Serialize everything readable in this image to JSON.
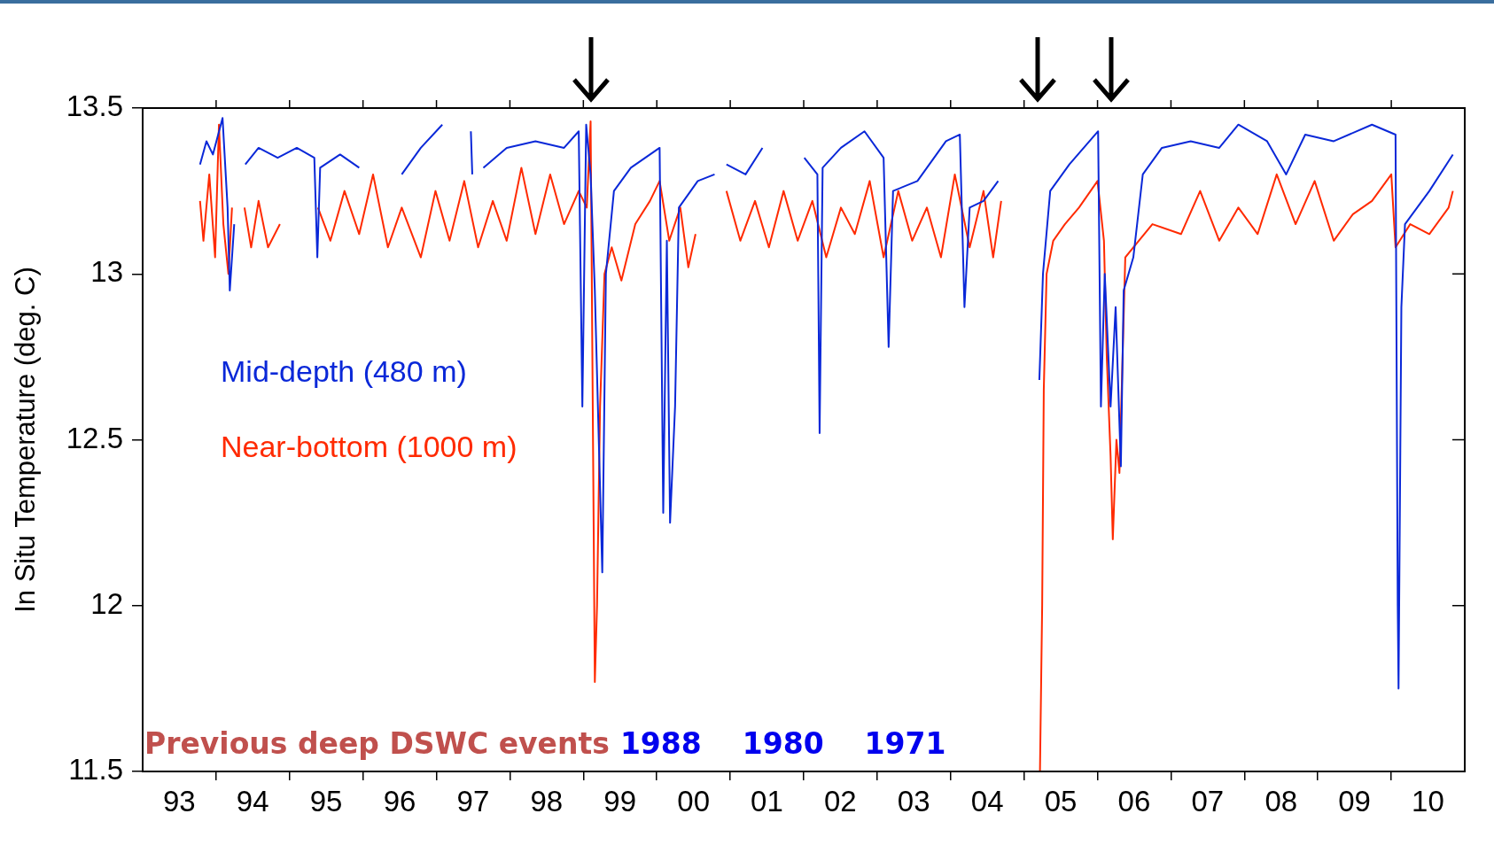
{
  "chart_data": {
    "type": "line",
    "ylabel": "In Situ Temperature (deg. C)",
    "legend": "left",
    "xlim": [
      "1993-01-01",
      "2011-01-01"
    ],
    "ylim": [
      11.5,
      13.5
    ],
    "yticks": [
      11.5,
      12,
      12.5,
      13,
      13.5
    ],
    "xticks": [
      {
        "value": "1993-07-02",
        "label": "93"
      },
      {
        "value": "1994",
        "label": null
      },
      {
        "value": "1994-07-02",
        "label": "94"
      },
      {
        "value": "1995",
        "label": null
      },
      {
        "value": "1995-07-02",
        "label": "95"
      },
      {
        "value": "1996",
        "label": null
      },
      {
        "value": "1996-07-02",
        "label": "96"
      },
      {
        "value": "1997",
        "label": null
      },
      {
        "value": "1997-07-02",
        "label": "97"
      },
      {
        "value": "1998",
        "label": null
      },
      {
        "value": "1998-07-02",
        "label": "98"
      },
      {
        "value": "1999",
        "label": null
      },
      {
        "value": "1999-07-02",
        "label": "99"
      },
      {
        "value": "2000",
        "label": null
      },
      {
        "value": "2000-07-02",
        "label": "00"
      },
      {
        "value": "2001",
        "label": null
      },
      {
        "value": "2001-07-02",
        "label": "01"
      },
      {
        "value": "2002",
        "label": null
      },
      {
        "value": "2002-07-02",
        "label": "02"
      },
      {
        "value": "2003",
        "label": null
      },
      {
        "value": "2003-07-02",
        "label": "03"
      },
      {
        "value": "2004",
        "label": null
      },
      {
        "value": "2004-07-02",
        "label": "04"
      },
      {
        "value": "2005",
        "label": null
      },
      {
        "value": "2005-07-02",
        "label": "05"
      },
      {
        "value": "2006",
        "label": null
      },
      {
        "value": "2006-07-02",
        "label": "06"
      },
      {
        "value": "2007",
        "label": null
      },
      {
        "value": "2007-07-02",
        "label": "07"
      },
      {
        "value": "2008",
        "label": null
      },
      {
        "value": "2008-07-02",
        "label": "08"
      },
      {
        "value": "2009",
        "label": null
      },
      {
        "value": "2009-07-02",
        "label": "09"
      },
      {
        "value": "2010",
        "label": null
      },
      {
        "value": "2010-07-02",
        "label": "10"
      }
    ],
    "annotations": [
      "Previous deep DSWC events",
      "1988",
      "1980",
      "1971"
    ],
    "series": [
      {
        "name": "Mid-depth (480 m)",
        "color": "#0a28d8",
        "x": [
          "1993-10-13",
          "1993-11-14",
          "1993-12-16",
          "1994-02-02",
          "1994-02-27",
          "1994-03-10",
          "1994-04-01",
          "1994-04-30",
          "1994-05-26",
          "1994-07-31",
          "1994-11-03",
          "1995-02-06",
          "1995-05-04",
          "1995-05-19",
          "1995-06-02",
          "1995-09-09",
          "1995-12-13",
          "1996-03-14",
          "1996-07-12",
          "1996-10-15",
          "1997-01-30",
          "1997-03-14",
          "1997-06-21",
          "1997-06-28",
          "1997-07-20",
          "1997-08-22",
          "1997-12-16",
          "1998-05-08",
          "1998-09-27",
          "1998-12-09",
          "1998-12-27",
          "1999-01-15",
          "1999-02-06",
          "1999-02-27",
          "1999-04-05",
          "1999-04-23",
          "1999-06-02",
          "1999-08-25",
          "2000-01-15",
          "2000-02-02",
          "2000-02-20",
          "2000-03-07",
          "2000-04-01",
          "2000-04-20",
          "2000-07-23",
          "2000-10-15",
          "2000-11-06",
          "2000-12-13",
          "2001-03-18",
          "2001-06-10",
          "2001-08-07",
          "2002-01-04",
          "2002-03-10",
          "2002-03-21",
          "2002-04-05",
          "2002-07-05",
          "2002-10-30",
          "2003-02-02",
          "2003-02-27",
          "2003-03-21",
          "2003-07-20",
          "2003-12-09",
          "2004-02-16",
          "2004-03-10",
          "2004-04-05",
          "2004-06-13",
          "2004-08-25",
          "2004-11-25",
          "2005-03-18",
          "2005-04-05",
          "2005-05-11",
          "2005-08-14",
          "2006-01-04",
          "2006-01-18",
          "2006-02-06",
          "2006-03-07",
          "2006-04-01",
          "2006-04-27",
          "2006-05-11",
          "2006-06-28",
          "2006-08-14",
          "2006-11-17",
          "2007-04-09",
          "2007-08-29",
          "2007-12-02",
          "2008-04-23",
          "2008-07-27",
          "2008-10-30",
          "2009-03-21",
          "2009-09-27",
          "2010-01-22",
          "2010-02-02",
          "2010-02-06",
          "2010-02-20",
          "2010-03-10",
          "2010-07-09",
          "2010-11-03"
        ],
        "values": [
          13.33,
          13.4,
          13.36,
          13.47,
          13.2,
          12.95,
          13.15,
          null,
          13.33,
          13.38,
          13.35,
          13.38,
          13.35,
          13.05,
          13.32,
          13.36,
          13.32,
          null,
          13.3,
          13.38,
          13.45,
          null,
          13.43,
          13.3,
          null,
          13.32,
          13.38,
          13.4,
          13.38,
          13.43,
          12.6,
          13.45,
          13.3,
          12.95,
          12.1,
          13.0,
          13.25,
          13.32,
          13.38,
          12.28,
          13.1,
          12.25,
          12.6,
          13.2,
          13.28,
          13.3,
          null,
          13.33,
          13.3,
          13.38,
          null,
          13.35,
          13.3,
          12.52,
          13.32,
          13.38,
          13.43,
          13.35,
          12.78,
          13.25,
          13.28,
          13.4,
          13.42,
          12.9,
          13.2,
          13.22,
          13.28,
          null,
          12.68,
          13.0,
          13.25,
          13.33,
          13.43,
          12.6,
          13.0,
          12.6,
          12.9,
          12.42,
          12.95,
          13.05,
          13.3,
          13.38,
          13.4,
          13.38,
          13.45,
          13.4,
          13.3,
          13.42,
          13.4,
          13.45,
          13.42,
          12.0,
          11.75,
          12.9,
          13.15,
          13.25,
          13.36
        ]
      },
      {
        "name": "Near-bottom (1000 m)",
        "color": "#ff2a00",
        "x": [
          "1993-10-13",
          "1993-10-30",
          "1993-11-28",
          "1993-12-27",
          "1994-01-15",
          "1994-02-06",
          "1994-03-03",
          "1994-03-21",
          "1994-04-20",
          "1994-05-22",
          "1994-06-24",
          "1994-07-31",
          "1994-09-16",
          "1994-11-14",
          "1995-03-14",
          "1995-05-22",
          "1995-07-23",
          "1995-10-01",
          "1995-12-13",
          "1996-02-20",
          "1996-05-04",
          "1996-07-12",
          "1996-10-15",
          "1996-12-27",
          "1997-03-07",
          "1997-05-19",
          "1997-07-27",
          "1997-10-08",
          "1997-12-16",
          "1998-02-27",
          "1998-05-08",
          "1998-07-20",
          "1998-09-27",
          "1998-12-09",
          "1999-01-18",
          "1999-02-06",
          "1999-02-27",
          "1999-03-10",
          "1999-03-25",
          "1999-04-16",
          "1999-05-22",
          "1999-07-09",
          "1999-09-16",
          "1999-11-28",
          "2000-01-15",
          "2000-03-03",
          "2000-04-27",
          "2000-06-06",
          "2000-07-12",
          "2000-09-12",
          "2000-12-13",
          "2001-02-20",
          "2001-05-04",
          "2001-07-12",
          "2001-09-23",
          "2001-12-02",
          "2002-02-13",
          "2002-04-23",
          "2002-07-05",
          "2002-09-12",
          "2002-11-25",
          "2003-02-02",
          "2003-04-16",
          "2003-06-24",
          "2003-09-05",
          "2003-11-14",
          "2004-01-22",
          "2004-04-05",
          "2004-06-13",
          "2004-07-31",
          "2004-09-09",
          "2004-11-25",
          "2005-03-21",
          "2005-04-01",
          "2005-04-09",
          "2005-04-23",
          "2005-05-26",
          "2005-07-23",
          "2005-10-01",
          "2006-01-01",
          "2006-02-02",
          "2006-02-16",
          "2006-03-07",
          "2006-03-18",
          "2006-04-05",
          "2006-04-20",
          "2006-05-19",
          "2006-06-28",
          "2006-10-01",
          "2007-02-20",
          "2007-05-26",
          "2007-08-29",
          "2007-12-02",
          "2008-03-07",
          "2008-06-10",
          "2008-09-12",
          "2008-12-16",
          "2009-03-21",
          "2009-06-24",
          "2009-09-27",
          "2010-01-01",
          "2010-01-22",
          "2010-04-05",
          "2010-07-09",
          "2010-10-13",
          "2010-11-03"
        ],
        "values": [
          13.22,
          13.1,
          13.3,
          13.05,
          13.45,
          13.15,
          13.0,
          13.2,
          null,
          13.2,
          13.08,
          13.22,
          13.08,
          13.15,
          null,
          13.2,
          13.1,
          13.25,
          13.12,
          13.3,
          13.08,
          13.2,
          13.05,
          13.25,
          13.1,
          13.28,
          13.08,
          13.22,
          13.1,
          13.32,
          13.12,
          13.3,
          13.15,
          13.25,
          13.2,
          13.46,
          11.77,
          12.0,
          12.6,
          13.0,
          13.08,
          12.98,
          13.15,
          13.22,
          13.28,
          13.1,
          13.2,
          13.02,
          13.12,
          null,
          13.25,
          13.1,
          13.22,
          13.08,
          13.25,
          13.1,
          13.22,
          13.05,
          13.2,
          13.12,
          13.28,
          13.05,
          13.25,
          13.1,
          13.2,
          13.05,
          13.3,
          13.08,
          13.25,
          13.05,
          13.22,
          null,
          11.5,
          12.0,
          12.65,
          13.0,
          13.1,
          13.15,
          13.2,
          13.28,
          13.1,
          12.75,
          12.45,
          12.2,
          12.5,
          12.4,
          13.05,
          13.08,
          13.15,
          13.12,
          13.25,
          13.1,
          13.2,
          13.12,
          13.3,
          13.15,
          13.28,
          13.1,
          13.18,
          13.22,
          13.3,
          13.08,
          13.15,
          13.12,
          13.2,
          13.25
        ]
      }
    ]
  }
}
